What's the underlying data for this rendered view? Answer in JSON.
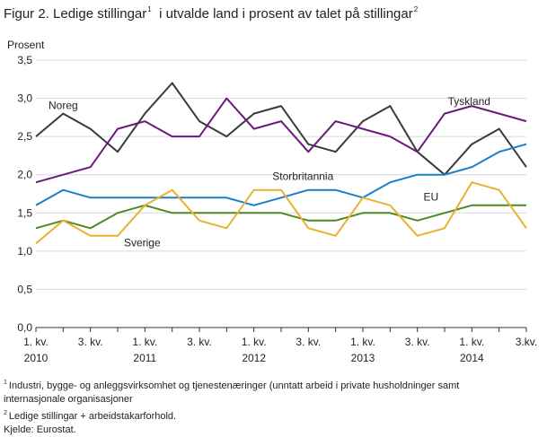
{
  "title": {
    "main": "Figur 2. Ledige stillingar",
    "sup1": "1",
    "rest": "i utvalde land i prosent av talet på stillingar",
    "sup2": "2"
  },
  "footnotes": {
    "n1_mark": "1",
    "n1_line1": "Industri, bygge- og anleggsvirksomhet og tjenestenæringer (unntatt arbeid i private husholdninger  samt",
    "n1_line2": "internasjonale organisasjoner",
    "n2_mark": "2",
    "n2_text": "Ledige stillingar + arbeidstakarforhold.",
    "source": "Kjelde: Eurostat."
  },
  "chart_data": {
    "type": "line",
    "ylabel": "Prosent",
    "xlabel": "",
    "ylim": [
      0,
      3.5
    ],
    "yticks": [
      "0,0",
      "0,5",
      "1,0",
      "1,5",
      "2,0",
      "2,5",
      "3,0",
      "3,5"
    ],
    "grid": true,
    "x": [
      "2010K1",
      "2010K2",
      "2010K3",
      "2010K4",
      "2011K1",
      "2011K2",
      "2011K3",
      "2011K4",
      "2012K1",
      "2012K2",
      "2012K3",
      "2012K4",
      "2013K1",
      "2013K2",
      "2013K3",
      "2013K4",
      "2014K1",
      "2014K2",
      "2014K3"
    ],
    "xticks": [
      {
        "index": 0,
        "line1": "1. kv.",
        "line2": "2010"
      },
      {
        "index": 2,
        "line1": "3. kv.",
        "line2": ""
      },
      {
        "index": 4,
        "line1": "1. kv.",
        "line2": "2011"
      },
      {
        "index": 6,
        "line1": "3. kv.",
        "line2": ""
      },
      {
        "index": 8,
        "line1": "1. kv.",
        "line2": "2012"
      },
      {
        "index": 10,
        "line1": "3. kv.",
        "line2": ""
      },
      {
        "index": 12,
        "line1": "1. kv.",
        "line2": "2013"
      },
      {
        "index": 14,
        "line1": "3. kv.",
        "line2": ""
      },
      {
        "index": 16,
        "line1": "1. kv.",
        "line2": "2014"
      },
      {
        "index": 18,
        "line1": "3.kv.",
        "line2": ""
      }
    ],
    "series": [
      {
        "name": "Noreg",
        "color": "#3a3a3a",
        "values": [
          2.5,
          2.8,
          2.6,
          2.3,
          2.8,
          3.2,
          2.7,
          2.5,
          2.8,
          2.9,
          2.4,
          2.3,
          2.7,
          2.9,
          2.3,
          2.0,
          2.4,
          2.6,
          2.1
        ],
        "label_at": [
          1.0,
          2.86
        ]
      },
      {
        "name": "Tyskland",
        "color": "#6a1a7a",
        "values": [
          1.9,
          2.0,
          2.1,
          2.6,
          2.7,
          2.5,
          2.5,
          3.0,
          2.6,
          2.7,
          2.3,
          2.7,
          2.6,
          2.5,
          2.3,
          2.8,
          2.9,
          2.8,
          2.7
        ],
        "label_at": [
          15.9,
          2.91
        ]
      },
      {
        "name": "Storbritannia",
        "color": "#1a7fc4",
        "values": [
          1.6,
          1.8,
          1.7,
          1.7,
          1.7,
          1.7,
          1.7,
          1.7,
          1.6,
          1.7,
          1.8,
          1.8,
          1.7,
          1.9,
          2.0,
          2.0,
          2.1,
          2.3,
          2.4
        ],
        "label_at": [
          9.8,
          1.93
        ]
      },
      {
        "name": "EU",
        "color": "#4d8a22",
        "values": [
          1.3,
          1.4,
          1.3,
          1.5,
          1.6,
          1.5,
          1.5,
          1.5,
          1.5,
          1.5,
          1.4,
          1.4,
          1.5,
          1.5,
          1.4,
          1.5,
          1.6,
          1.6,
          1.6
        ],
        "label_at": [
          14.5,
          1.66
        ]
      },
      {
        "name": "Sverige",
        "color": "#e8b230",
        "values": [
          1.1,
          1.4,
          1.2,
          1.2,
          1.6,
          1.8,
          1.4,
          1.3,
          1.8,
          1.8,
          1.3,
          1.2,
          1.7,
          1.6,
          1.2,
          1.3,
          1.9,
          1.8,
          1.3
        ],
        "label_at": [
          3.9,
          1.06
        ]
      }
    ]
  }
}
